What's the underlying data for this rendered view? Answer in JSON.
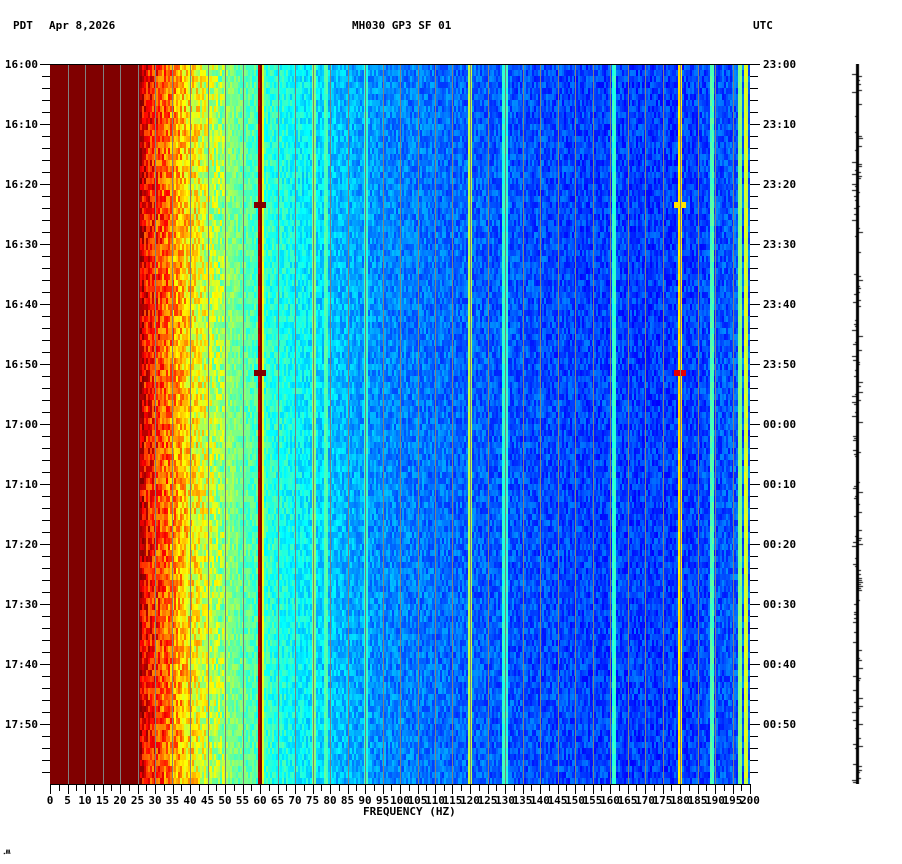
{
  "header": {
    "left_timezone": "PDT",
    "date": "Apr 8,2026",
    "station": "MH030 GP3 SF 01",
    "right_timezone": "UTC"
  },
  "footer": {
    "mark": "․ʍ"
  },
  "chart_data": {
    "type": "heatmap",
    "title": "MH030 GP3 SF 01",
    "subtitle": "Apr 8,2026",
    "xlabel": "FREQUENCY (HZ)",
    "ylabel_left": "PDT",
    "ylabel_right": "UTC",
    "xlim": [
      0,
      200
    ],
    "x_ticks": [
      0,
      5,
      10,
      15,
      20,
      25,
      30,
      35,
      40,
      45,
      50,
      55,
      60,
      65,
      70,
      75,
      80,
      85,
      90,
      95,
      100,
      105,
      110,
      115,
      120,
      125,
      130,
      135,
      140,
      145,
      150,
      155,
      160,
      165,
      170,
      175,
      180,
      185,
      190,
      195,
      200
    ],
    "x_minor_tick_step": 1,
    "y_ticks_left": [
      "16:00",
      "16:10",
      "16:20",
      "16:30",
      "16:40",
      "16:50",
      "17:00",
      "17:10",
      "17:20",
      "17:30",
      "17:40",
      "17:50"
    ],
    "y_ticks_right": [
      "23:00",
      "23:10",
      "23:20",
      "23:30",
      "23:40",
      "23:50",
      "00:00",
      "00:10",
      "00:20",
      "00:30",
      "00:40",
      "00:50"
    ],
    "y_minor_tick_minutes": 2,
    "duration_minutes": 120,
    "grid": {
      "vertical_every_hz": 5,
      "color": "#808080"
    },
    "colormap": "jet",
    "colormap_colors": [
      "#00008f",
      "#0000ff",
      "#0080ff",
      "#00ffff",
      "#80ff80",
      "#ffff00",
      "#ff8000",
      "#ff0000",
      "#800000"
    ],
    "spectrum_profile": [
      {
        "hz": 0,
        "level": 1.0
      },
      {
        "hz": 25,
        "level": 1.0
      },
      {
        "hz": 27,
        "level": 0.88
      },
      {
        "hz": 33,
        "level": 0.78
      },
      {
        "hz": 40,
        "level": 0.65
      },
      {
        "hz": 47,
        "level": 0.55
      },
      {
        "hz": 55,
        "level": 0.47
      },
      {
        "hz": 62,
        "level": 0.42
      },
      {
        "hz": 70,
        "level": 0.38
      },
      {
        "hz": 80,
        "level": 0.32
      },
      {
        "hz": 95,
        "level": 0.26
      },
      {
        "hz": 120,
        "level": 0.22
      },
      {
        "hz": 150,
        "level": 0.19
      },
      {
        "hz": 180,
        "level": 0.18
      },
      {
        "hz": 200,
        "level": 0.22
      }
    ],
    "persistent_lines": [
      {
        "hz": 60,
        "level": 0.95,
        "note": "dark red line"
      },
      {
        "hz": 60.5,
        "level": 0.6
      },
      {
        "hz": 75.5,
        "level": 0.5
      },
      {
        "hz": 79,
        "level": 0.45
      },
      {
        "hz": 90.5,
        "level": 0.42
      },
      {
        "hz": 120,
        "level": 0.55
      },
      {
        "hz": 130,
        "level": 0.42
      },
      {
        "hz": 161,
        "level": 0.42
      },
      {
        "hz": 180,
        "level": 0.65
      },
      {
        "hz": 189,
        "level": 0.45
      },
      {
        "hz": 197,
        "level": 0.5
      },
      {
        "hz": 199,
        "level": 0.58
      }
    ],
    "transient_events": [
      {
        "hz": 60,
        "minute": 23,
        "level": 1.0
      },
      {
        "hz": 60,
        "minute": 51,
        "level": 1.0
      },
      {
        "hz": 180,
        "minute": 23,
        "level": 0.65
      },
      {
        "hz": 180,
        "minute": 51,
        "level": 0.9
      }
    ]
  }
}
